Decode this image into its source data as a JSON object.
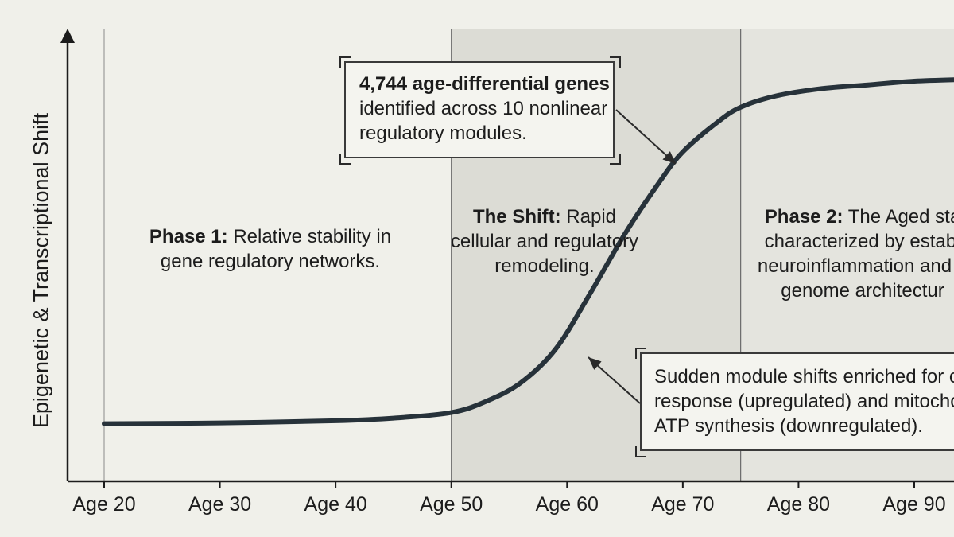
{
  "chart_data": {
    "type": "line",
    "x_unit": "age",
    "ylabel": "Epigenetic & Transcriptional Shift",
    "x_ticks": [
      "Age 20",
      "Age 30",
      "Age 40",
      "Age 50",
      "Age 60",
      "Age 70",
      "Age 80",
      "Age 90"
    ],
    "xlim": [
      20,
      95
    ],
    "ylim": [
      0,
      1
    ],
    "grid": false,
    "series": [
      {
        "x": [
          20,
          30,
          40,
          45,
          50,
          53,
          56,
          59,
          62,
          65,
          68,
          70,
          73,
          75,
          78,
          82,
          86,
          90,
          95
        ],
        "y": [
          0.05,
          0.052,
          0.058,
          0.065,
          0.08,
          0.11,
          0.16,
          0.25,
          0.4,
          0.56,
          0.7,
          0.78,
          0.86,
          0.9,
          0.93,
          0.95,
          0.96,
          0.97,
          0.975
        ],
        "color": "#27323a"
      }
    ],
    "phase_regions": [
      {
        "start": 50,
        "end": 75,
        "color": "#dcdcd5"
      },
      {
        "start": 75,
        "end": 95,
        "color": "#e4e4de"
      }
    ],
    "annotations": {
      "phase1": {
        "title": "Phase 1:",
        "text": "Relative stability in",
        "text2": "gene regulatory networks."
      },
      "shift": {
        "title": "The Shift:",
        "text": "Rapid",
        "text2": "cellular and regulatory",
        "text3": "remodeling."
      },
      "phase2": {
        "title": "Phase 2:",
        "text": "The Aged sta",
        "text2": "characterized by establ",
        "text3": "neuroinflammation and a",
        "text4": "genome architectur"
      },
      "genes_box": {
        "bold": "4,744 age-differential genes",
        "line2": "identified across 10 nonlinear",
        "line3": "regulatory modules."
      },
      "modules_box": {
        "line1": "Sudden module shifts enriched for cyto",
        "line2": "response (upregulated) and mitochonc",
        "line3": "ATP synthesis (downregulated)."
      }
    }
  }
}
